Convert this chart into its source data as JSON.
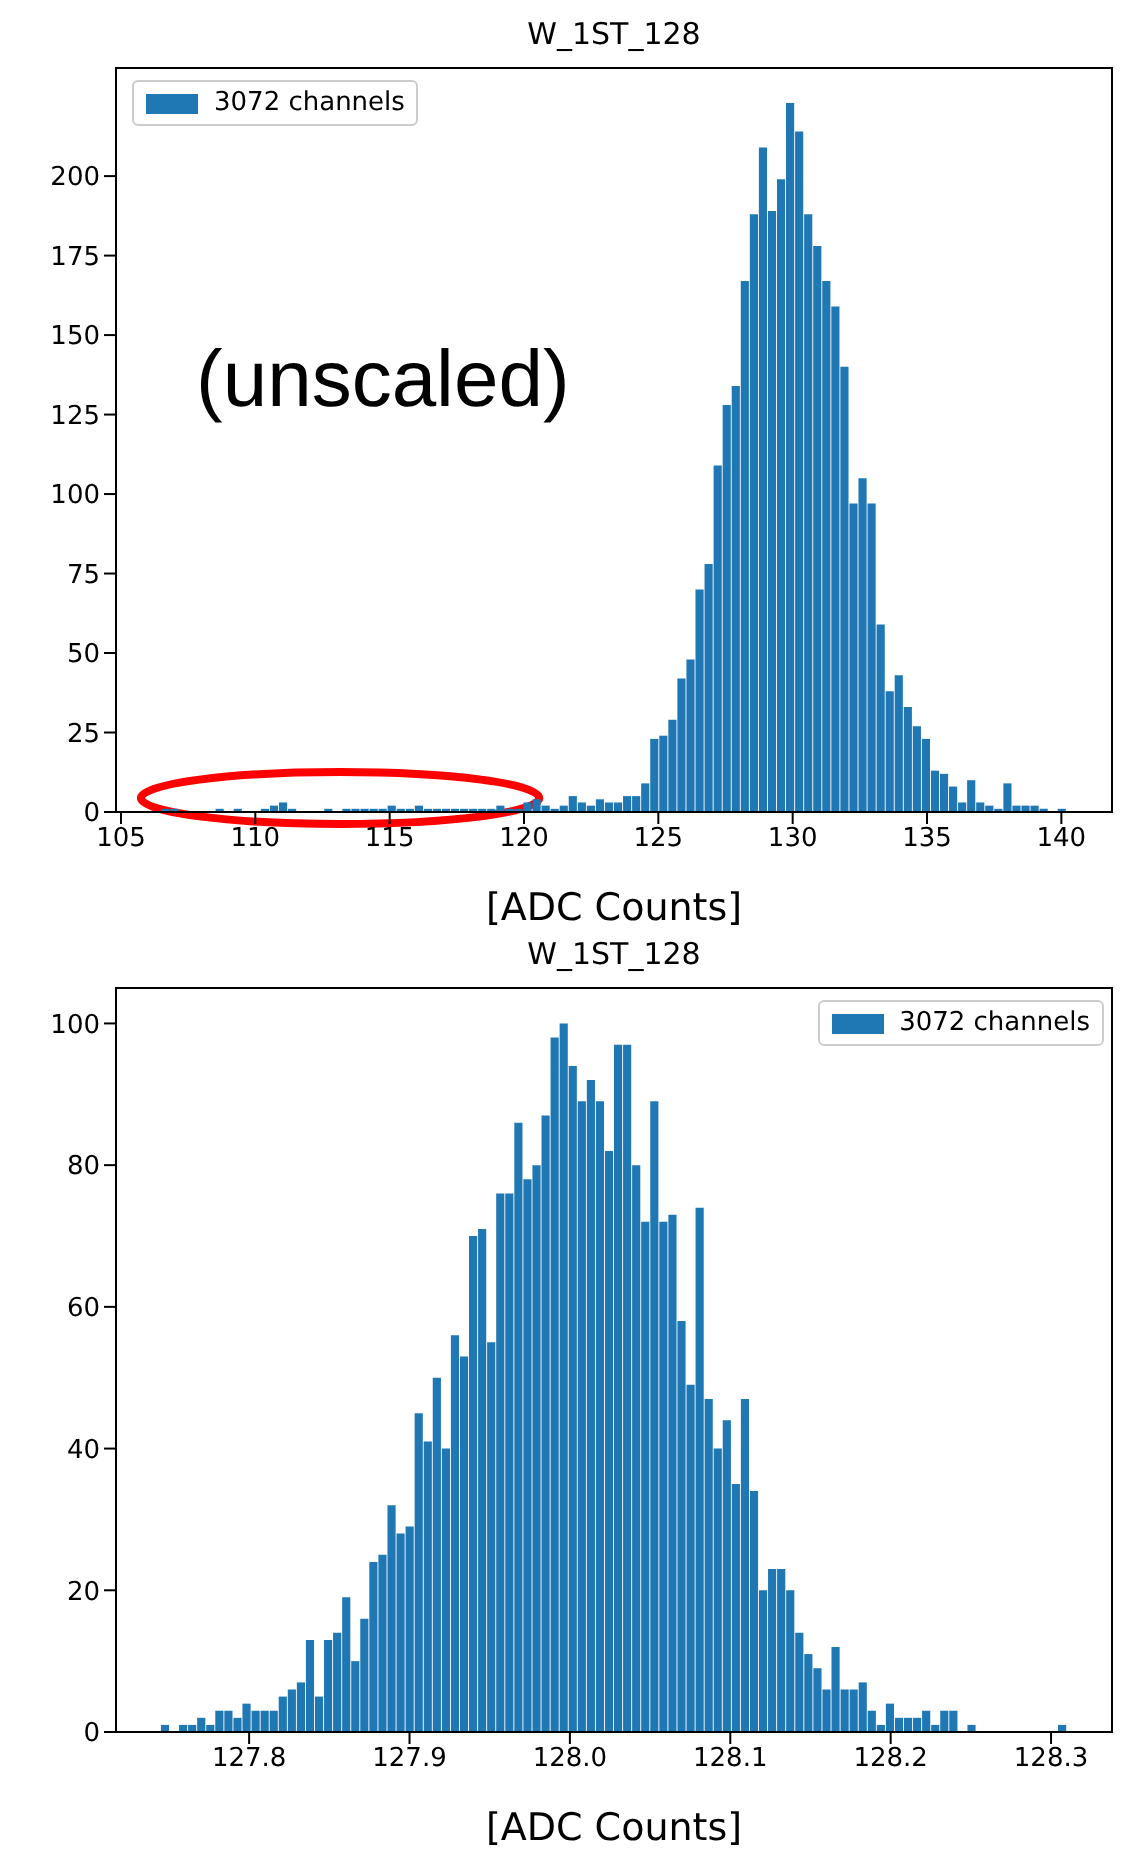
{
  "chart_data": [
    {
      "type": "histogram",
      "title": "W_1ST_128",
      "xlabel": "[ADC Counts]",
      "legend": "top left",
      "annotations": [
        "(unscaled)"
      ],
      "bins": [
        106.5,
        106.837,
        107.174,
        107.511,
        107.848,
        108.185,
        108.522,
        108.859,
        109.196,
        109.533,
        109.87,
        110.207,
        110.544,
        110.881,
        111.218,
        111.555,
        111.892,
        112.229,
        112.566,
        112.903,
        113.24,
        113.577,
        113.914,
        114.251,
        114.588,
        114.925,
        115.262,
        115.599,
        115.936,
        116.273,
        116.61,
        116.947,
        117.284,
        117.621,
        117.958,
        118.295,
        118.632,
        118.969,
        119.306,
        119.643,
        119.98,
        120.317,
        120.654,
        120.991,
        121.328,
        121.665,
        122.002,
        122.339,
        122.676,
        123.013,
        123.35,
        123.687,
        124.024,
        124.361,
        124.698,
        125.035,
        125.372,
        125.709,
        126.046,
        126.383,
        126.72,
        127.057,
        127.394,
        127.731,
        128.068,
        128.405,
        128.742,
        129.079,
        129.416,
        129.753,
        130.09,
        130.427,
        130.764,
        131.101,
        131.438,
        131.775,
        132.112,
        132.449,
        132.786,
        133.123,
        133.46,
        133.797,
        134.134,
        134.471,
        134.808,
        135.145,
        135.482,
        135.819,
        136.156,
        136.493,
        136.83,
        137.167,
        137.504,
        137.841,
        138.178,
        138.515,
        138.852,
        139.189,
        139.526,
        139.863,
        140.2
      ],
      "series": [
        {
          "name": "3072 channels",
          "color": "#1f77b4",
          "values": [
            1,
            1,
            0,
            0,
            0,
            0,
            1,
            0,
            1,
            0,
            0,
            1,
            2,
            3,
            1,
            0,
            0,
            0,
            1,
            0,
            1,
            1,
            1,
            1,
            1,
            2,
            1,
            1,
            2,
            1,
            1,
            1,
            1,
            1,
            1,
            1,
            1,
            2,
            1,
            1,
            3,
            4,
            2,
            1,
            2,
            5,
            3,
            2,
            4,
            3,
            3,
            5,
            5,
            9,
            23,
            24,
            29,
            42,
            48,
            70,
            78,
            109,
            128,
            134,
            167,
            188,
            209,
            189,
            199,
            223,
            214,
            188,
            178,
            167,
            159,
            140,
            97,
            105,
            97,
            59,
            38,
            43,
            33,
            27,
            23,
            13,
            12,
            8,
            3,
            10,
            3,
            2,
            1,
            9,
            2,
            2,
            2,
            1,
            0,
            1
          ]
        }
      ],
      "xlim": [
        104.815,
        141.885
      ],
      "xticks": [
        105,
        110,
        115,
        120,
        125,
        130,
        135,
        140
      ],
      "ylim": [
        0,
        234
      ],
      "yticks": [
        0,
        25,
        50,
        75,
        100,
        125,
        150,
        175,
        200
      ]
    },
    {
      "type": "histogram",
      "title": "W_1ST_128",
      "xlabel": "[ADC Counts]",
      "legend": "top right",
      "bins": [
        127.745,
        127.75065,
        127.7563,
        127.76195,
        127.7676,
        127.77325,
        127.7789,
        127.78455,
        127.7902,
        127.79585,
        127.8015,
        127.80715,
        127.8128,
        127.81845,
        127.8241,
        127.82975,
        127.8354,
        127.84105,
        127.8467,
        127.85235,
        127.858,
        127.86365,
        127.8693,
        127.87495,
        127.8806,
        127.88625,
        127.8919,
        127.89755,
        127.9032,
        127.90885,
        127.9145,
        127.92015,
        127.9258,
        127.93145,
        127.9371,
        127.94275,
        127.9484,
        127.95405,
        127.9597,
        127.96535,
        127.971,
        127.97665,
        127.9823,
        127.98795,
        127.9936,
        127.99925,
        128.0049,
        128.01055,
        128.0162,
        128.02185,
        128.0275,
        128.03315,
        128.0388,
        128.04445,
        128.0501,
        128.05575,
        128.0614,
        128.06705,
        128.0727,
        128.07835,
        128.084,
        128.08965,
        128.0953,
        128.10095,
        128.1066,
        128.11225,
        128.1179,
        128.12355,
        128.1292,
        128.13485,
        128.1405,
        128.14615,
        128.1518,
        128.15745,
        128.1631,
        128.16875,
        128.1744,
        128.18005,
        128.1857,
        128.19135,
        128.197,
        128.20265,
        128.2083,
        128.21395,
        128.2196,
        128.22525,
        128.2309,
        128.23655,
        128.2422,
        128.24785,
        128.2535,
        128.25915,
        128.2648,
        128.27045,
        128.2761,
        128.28175,
        128.2874,
        128.29305,
        128.2987,
        128.30435,
        128.31
      ],
      "series": [
        {
          "name": "3072 channels",
          "color": "#1f77b4",
          "values": [
            1,
            0,
            1,
            1,
            2,
            1,
            3,
            3,
            2,
            4,
            3,
            3,
            3,
            5,
            6,
            7,
            13,
            5,
            13,
            14,
            19,
            10,
            16,
            24,
            25,
            32,
            28,
            29,
            45,
            41,
            50,
            40,
            56,
            53,
            70,
            71,
            55,
            76,
            76,
            86,
            78,
            80,
            87,
            98,
            100,
            94,
            89,
            92,
            89,
            82,
            97,
            97,
            80,
            72,
            89,
            72,
            73,
            58,
            49,
            74,
            47,
            40,
            44,
            35,
            47,
            34,
            20,
            23,
            23,
            20,
            14,
            11,
            9,
            6,
            12,
            6,
            6,
            7,
            3,
            1,
            4,
            2,
            2,
            2,
            3,
            1,
            3,
            3,
            0,
            1,
            0,
            0,
            0,
            0,
            0,
            0,
            0,
            0,
            0,
            1
          ]
        }
      ],
      "xlim": [
        127.717,
        128.338
      ],
      "xticks": [
        {
          "value": 127.8,
          "label": "127.8"
        },
        {
          "value": 127.9,
          "label": "127.9"
        },
        {
          "value": 128,
          "label": "128.0"
        },
        {
          "value": 128.1,
          "label": "128.1"
        },
        {
          "value": 128.2,
          "label": "128.2"
        },
        {
          "value": 128.3,
          "label": "128.3"
        }
      ],
      "ylim": [
        0,
        105
      ],
      "yticks": [
        0,
        20,
        40,
        60,
        80,
        100
      ]
    }
  ]
}
